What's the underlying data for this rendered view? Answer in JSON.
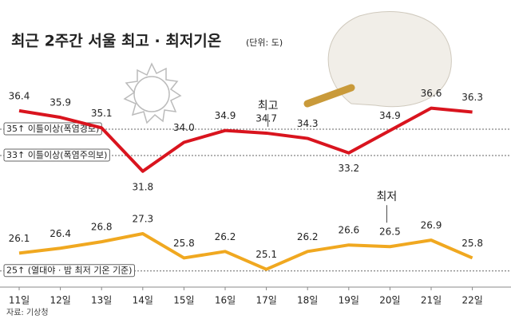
{
  "chart_data": {
    "type": "line",
    "title": "최근 2주간 서울 최고 · 최저기온",
    "subtitle": "(단위: 도)",
    "source": "자료: 기상청",
    "categories": [
      "11일",
      "12일",
      "13일",
      "14일",
      "15일",
      "16일",
      "17일",
      "18일",
      "19일",
      "20일",
      "21일",
      "22일"
    ],
    "ylim": [
      23,
      39
    ],
    "y2lim": [
      24,
      37
    ],
    "series": [
      {
        "name": "최고",
        "color": "#d9141e",
        "values": [
          36.4,
          35.9,
          35.1,
          31.8,
          34.0,
          34.9,
          34.7,
          34.3,
          33.2,
          34.9,
          36.6,
          36.3
        ],
        "value_labels": [
          "36.4",
          "35.9",
          "35.1",
          "31.8",
          "34.0",
          "34.9",
          "34.7",
          "34.3",
          "33.2",
          "34.9",
          "36.6",
          "36.3"
        ]
      },
      {
        "name": "최저",
        "color": "#f0a820",
        "axis": "y2",
        "values": [
          26.1,
          26.4,
          26.8,
          27.3,
          25.8,
          26.2,
          25.1,
          26.2,
          26.6,
          26.5,
          26.9,
          25.8
        ],
        "value_labels": [
          "26.1",
          "26.4",
          "26.8",
          "27.3",
          "25.8",
          "26.2",
          "25.1",
          "26.2",
          "26.6",
          "26.5",
          "26.9",
          "25.8"
        ]
      }
    ],
    "reference_lines": [
      {
        "value": 35,
        "label": "35↑ 이틀이상(폭염경보)"
      },
      {
        "value": 33,
        "label": "33↑ 이틀이상(폭염주의보)"
      },
      {
        "value": 25,
        "label": "25↑ (열대야 · 밤 최저 기온 기준)",
        "axis": "y2"
      }
    ]
  }
}
